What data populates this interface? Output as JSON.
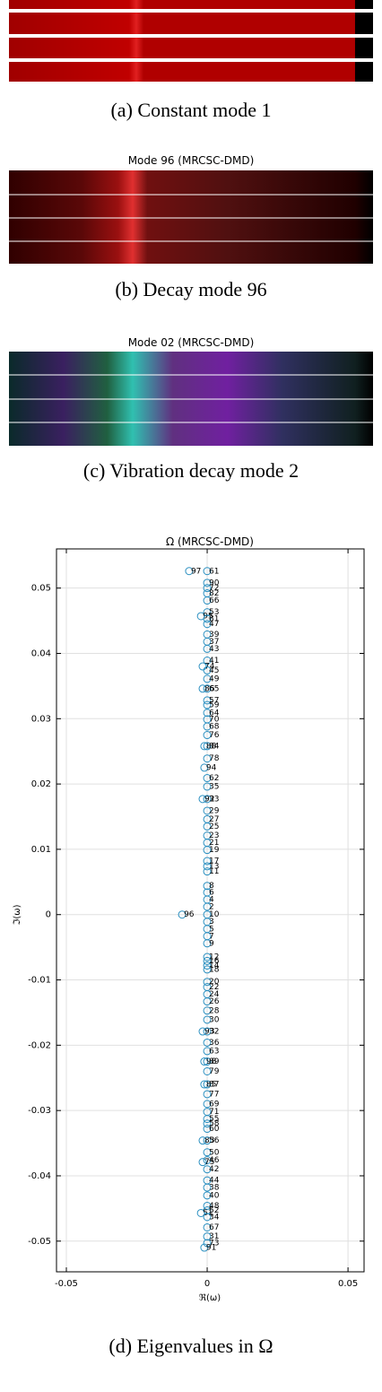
{
  "panels": [
    {
      "caption": "(a) Constant mode 1"
    },
    {
      "title": "Mode 96 (MRCSC-DMD)",
      "caption": "(b) Decay mode 96"
    },
    {
      "title": "Mode 02 (MRCSC-DMD)",
      "caption": "(c) Vibration decay mode 2"
    }
  ],
  "chart_data": {
    "type": "scatter",
    "title": "Ω (MRCSC-DMD)",
    "x_label": "ℜ(ω)",
    "y_label": "ℑ(ω)",
    "caption": "(d) Eigenvalues in Ω",
    "color": "#2a8fc0",
    "grid": true,
    "xlim": [
      -0.0535,
      0.0557
    ],
    "ylim": [
      -0.0547,
      0.056
    ],
    "xticks": [
      -0.05,
      0,
      0.05
    ],
    "yticks": [
      -0.05,
      -0.04,
      -0.03,
      -0.02,
      -0.01,
      0,
      0.01,
      0.02,
      0.03,
      0.04,
      0.05
    ],
    "labels": [
      "97",
      "61",
      "90",
      "72",
      "82",
      "66",
      "53",
      "95",
      "81",
      "47",
      "39",
      "37",
      "43",
      "41",
      "74",
      "45",
      "49",
      "86",
      "65",
      "57",
      "59",
      "64",
      "70",
      "68",
      "76",
      "88",
      "84",
      "78",
      "94",
      "62",
      "35",
      "92",
      "33",
      "29",
      "27",
      "25",
      "23",
      "21",
      "19",
      "17",
      "13",
      "11",
      "8",
      "6",
      "4",
      "2",
      "96",
      "10",
      "3",
      "5",
      "7",
      "9",
      "12",
      "16",
      "14",
      "18",
      "20",
      "22",
      "24",
      "26",
      "28",
      "30",
      "93",
      "32",
      "36",
      "63",
      "98",
      "89",
      "79",
      "85",
      "87",
      "77",
      "69",
      "71",
      "55",
      "58",
      "60",
      "83",
      "56",
      "50",
      "46",
      "75",
      "42",
      "44",
      "38",
      "40",
      "48",
      "52",
      "51",
      "34",
      "67",
      "31",
      "73",
      "91"
    ],
    "x": [
      -0.0064,
      0,
      0,
      0,
      0,
      0,
      0,
      -0.0022,
      0,
      0,
      0,
      0,
      0,
      0,
      -0.0016,
      0,
      0,
      -0.0016,
      0,
      0,
      0,
      0,
      0,
      0,
      0,
      -0.001,
      0,
      0,
      -0.001,
      0,
      0,
      -0.0016,
      0,
      0,
      0,
      0,
      0,
      0,
      0,
      0,
      0,
      0,
      0,
      0,
      0,
      0,
      -0.0089,
      0,
      0,
      0,
      0,
      0,
      0,
      0,
      0,
      0,
      0,
      0,
      0,
      0,
      0,
      0,
      -0.0016,
      0,
      0,
      0,
      -0.001,
      0,
      0,
      -0.001,
      0,
      0,
      0,
      0,
      0,
      0,
      0,
      -0.0016,
      0,
      0,
      0,
      -0.0016,
      0,
      0,
      0,
      0,
      0,
      0,
      -0.0022,
      0,
      0,
      0,
      0,
      -0.001
    ],
    "y": [
      0.0526,
      0.0526,
      0.0508,
      0.05,
      0.0492,
      0.0481,
      0.0463,
      0.0457,
      0.0453,
      0.0445,
      0.0429,
      0.0418,
      0.0407,
      0.0389,
      0.038,
      0.0374,
      0.0361,
      0.0346,
      0.0346,
      0.0328,
      0.0321,
      0.0309,
      0.0299,
      0.0288,
      0.0275,
      0.0258,
      0.0258,
      0.0239,
      0.0225,
      0.0209,
      0.0196,
      0.0177,
      0.0177,
      0.0159,
      0.0146,
      0.0135,
      0.0121,
      0.011,
      0.0099,
      0.0082,
      0.0074,
      0.0066,
      0.0044,
      0.0034,
      0.0023,
      0.0012,
      0,
      0,
      -0.0011,
      -0.0022,
      -0.0033,
      -0.0044,
      -0.0065,
      -0.0071,
      -0.0078,
      -0.0084,
      -0.0103,
      -0.0111,
      -0.0122,
      -0.0133,
      -0.0147,
      -0.0161,
      -0.0179,
      -0.0179,
      -0.0196,
      -0.0209,
      -0.0225,
      -0.0225,
      -0.024,
      -0.026,
      -0.026,
      -0.0275,
      -0.029,
      -0.0302,
      -0.0313,
      -0.032,
      -0.0328,
      -0.0346,
      -0.0346,
      -0.0364,
      -0.0376,
      -0.0379,
      -0.039,
      -0.0407,
      -0.0418,
      -0.043,
      -0.0446,
      -0.0453,
      -0.0457,
      -0.0463,
      -0.0479,
      -0.0493,
      -0.0503,
      -0.051
    ]
  }
}
